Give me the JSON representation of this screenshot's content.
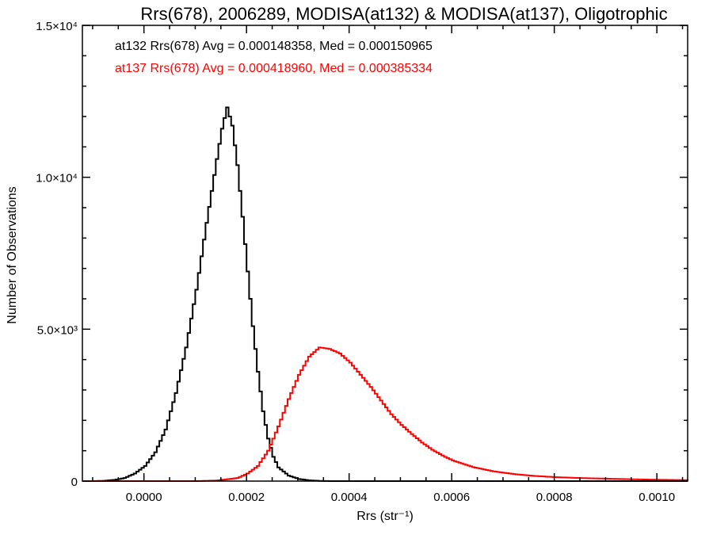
{
  "chart_data": {
    "type": "line",
    "title": "Rrs(678), 2006289, MODISA(at132) & MODISA(at137), Oligotrophic",
    "xlabel": "Rrs (str⁻¹)",
    "ylabel": "Number of Observations",
    "xlim": [
      -0.00012,
      0.00106
    ],
    "ylim": [
      0,
      15000
    ],
    "x_ticks": [
      {
        "value": 0.0,
        "label": "0.0000"
      },
      {
        "value": 0.0002,
        "label": "0.0002"
      },
      {
        "value": 0.0004,
        "label": "0.0004"
      },
      {
        "value": 0.0006,
        "label": "0.0006"
      },
      {
        "value": 0.0008,
        "label": "0.0008"
      },
      {
        "value": 0.001,
        "label": "0.0010"
      }
    ],
    "y_ticks": [
      {
        "value": 0,
        "label": "0"
      },
      {
        "value": 5000,
        "label": "5.0×10³"
      },
      {
        "value": 10000,
        "label": "1.0×10⁴"
      },
      {
        "value": 15000,
        "label": "1.5×10⁴"
      }
    ],
    "legend_placement": "top-left",
    "series": [
      {
        "name": "at132 Rrs(678) Avg = 0.000148358, Med = 0.000150965",
        "color": "#000000",
        "step": true,
        "points": [
          [
            -0.00012,
            0
          ],
          [
            -0.0001,
            0
          ],
          [
            -8e-05,
            10
          ],
          [
            -6e-05,
            40
          ],
          [
            -4e-05,
            100
          ],
          [
            -2e-05,
            250
          ],
          [
            0.0,
            500
          ],
          [
            2e-05,
            950
          ],
          [
            4e-05,
            1700
          ],
          [
            6e-05,
            2900
          ],
          [
            8e-05,
            4400
          ],
          [
            0.0001,
            6300
          ],
          [
            0.00012,
            8500
          ],
          [
            0.00014,
            10600
          ],
          [
            0.00015,
            11600
          ],
          [
            0.00016,
            12300
          ],
          [
            0.00017,
            11700
          ],
          [
            0.00018,
            10400
          ],
          [
            0.00019,
            8700
          ],
          [
            0.0002,
            6900
          ],
          [
            0.00021,
            5100
          ],
          [
            0.00022,
            3600
          ],
          [
            0.00023,
            2300
          ],
          [
            0.00024,
            1400
          ],
          [
            0.00025,
            800
          ],
          [
            0.00026,
            450
          ],
          [
            0.00028,
            180
          ],
          [
            0.0003,
            70
          ],
          [
            0.00032,
            25
          ],
          [
            0.00034,
            8
          ],
          [
            0.00036,
            0
          ],
          [
            0.00106,
            0
          ]
        ]
      },
      {
        "name": "at137 Rrs(678) Avg = 0.000418960, Med = 0.000385334",
        "color": "#ff0000",
        "step": true,
        "points": [
          [
            -0.00012,
            0
          ],
          [
            0.0001,
            0
          ],
          [
            0.00014,
            20
          ],
          [
            0.00018,
            100
          ],
          [
            0.0002,
            250
          ],
          [
            0.00022,
            500
          ],
          [
            0.00024,
            1000
          ],
          [
            0.00026,
            1800
          ],
          [
            0.00028,
            2700
          ],
          [
            0.0003,
            3500
          ],
          [
            0.00032,
            4100
          ],
          [
            0.00034,
            4400
          ],
          [
            0.00036,
            4350
          ],
          [
            0.00038,
            4200
          ],
          [
            0.0004,
            3900
          ],
          [
            0.00042,
            3500
          ],
          [
            0.00044,
            3100
          ],
          [
            0.00046,
            2650
          ],
          [
            0.00048,
            2200
          ],
          [
            0.0005,
            1850
          ],
          [
            0.00052,
            1550
          ],
          [
            0.00054,
            1270
          ],
          [
            0.00056,
            1030
          ],
          [
            0.00058,
            840
          ],
          [
            0.0006,
            680
          ],
          [
            0.00064,
            460
          ],
          [
            0.00068,
            320
          ],
          [
            0.00072,
            230
          ],
          [
            0.00076,
            170
          ],
          [
            0.0008,
            130
          ],
          [
            0.00085,
            100
          ],
          [
            0.0009,
            80
          ],
          [
            0.00095,
            60
          ],
          [
            0.001,
            45
          ],
          [
            0.00106,
            30
          ]
        ]
      }
    ]
  }
}
